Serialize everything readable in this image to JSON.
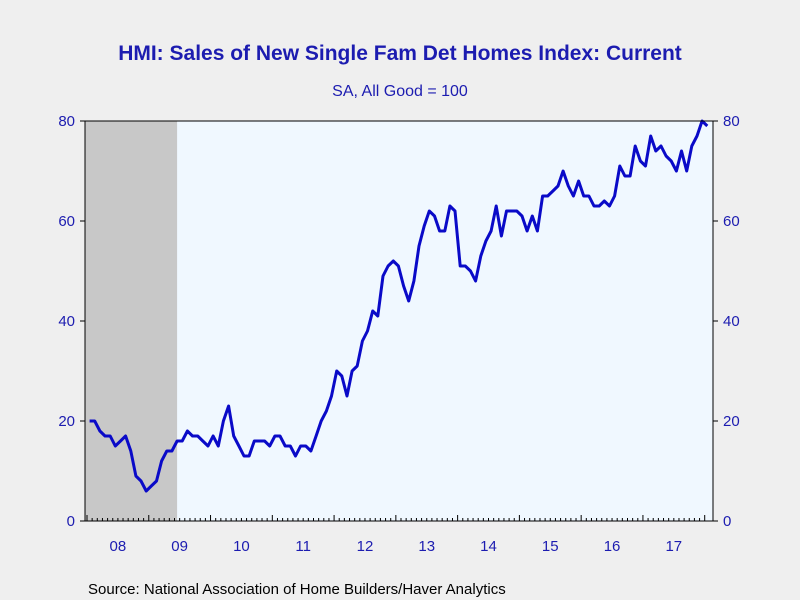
{
  "chart_data": {
    "type": "line",
    "title": "HMI: Sales of New Single Fam Det Homes Index: Current",
    "subtitle": "SA, All Good = 100",
    "source": "Source:  National Association of Home Builders/Haver Analytics",
    "xlabel": "",
    "ylabel": "",
    "ylim": [
      0,
      80
    ],
    "yticks": [
      0,
      20,
      40,
      60,
      80
    ],
    "xtick_labels": [
      "08",
      "09",
      "10",
      "11",
      "12",
      "13",
      "14",
      "15",
      "16",
      "17"
    ],
    "x_start": "2008-01",
    "recession_shading": {
      "start": "2008-01",
      "end": "2009-06",
      "color": "#c8c8c8"
    },
    "colors": {
      "line": "#0a0ac8",
      "plot_bg": "#f0f8ff",
      "text": "#1c1cb0"
    },
    "grid": false,
    "series": [
      {
        "values": [
          20,
          20,
          18,
          17,
          17,
          15,
          16,
          17,
          14,
          9,
          8,
          6,
          7,
          8,
          12,
          14,
          14,
          16,
          16,
          18,
          17,
          17,
          16,
          15,
          17,
          15,
          20,
          23,
          17,
          15,
          13,
          13,
          16,
          16,
          16,
          15,
          17,
          17,
          15,
          15,
          13,
          15,
          15,
          14,
          17,
          20,
          22,
          25,
          30,
          29,
          25,
          30,
          31,
          36,
          38,
          42,
          41,
          49,
          51,
          52,
          51,
          47,
          44,
          48,
          55,
          59,
          62,
          61,
          58,
          58,
          63,
          62,
          51,
          51,
          50,
          48,
          53,
          56,
          58,
          63,
          57,
          62,
          62,
          62,
          61,
          58,
          61,
          58,
          65,
          65,
          66,
          67,
          70,
          67,
          65,
          68,
          65,
          65,
          63,
          63,
          64,
          63,
          65,
          71,
          69,
          69,
          75,
          72,
          71,
          77,
          74,
          75,
          73,
          72,
          70,
          74,
          70,
          75,
          77,
          80,
          79
        ]
      }
    ]
  }
}
